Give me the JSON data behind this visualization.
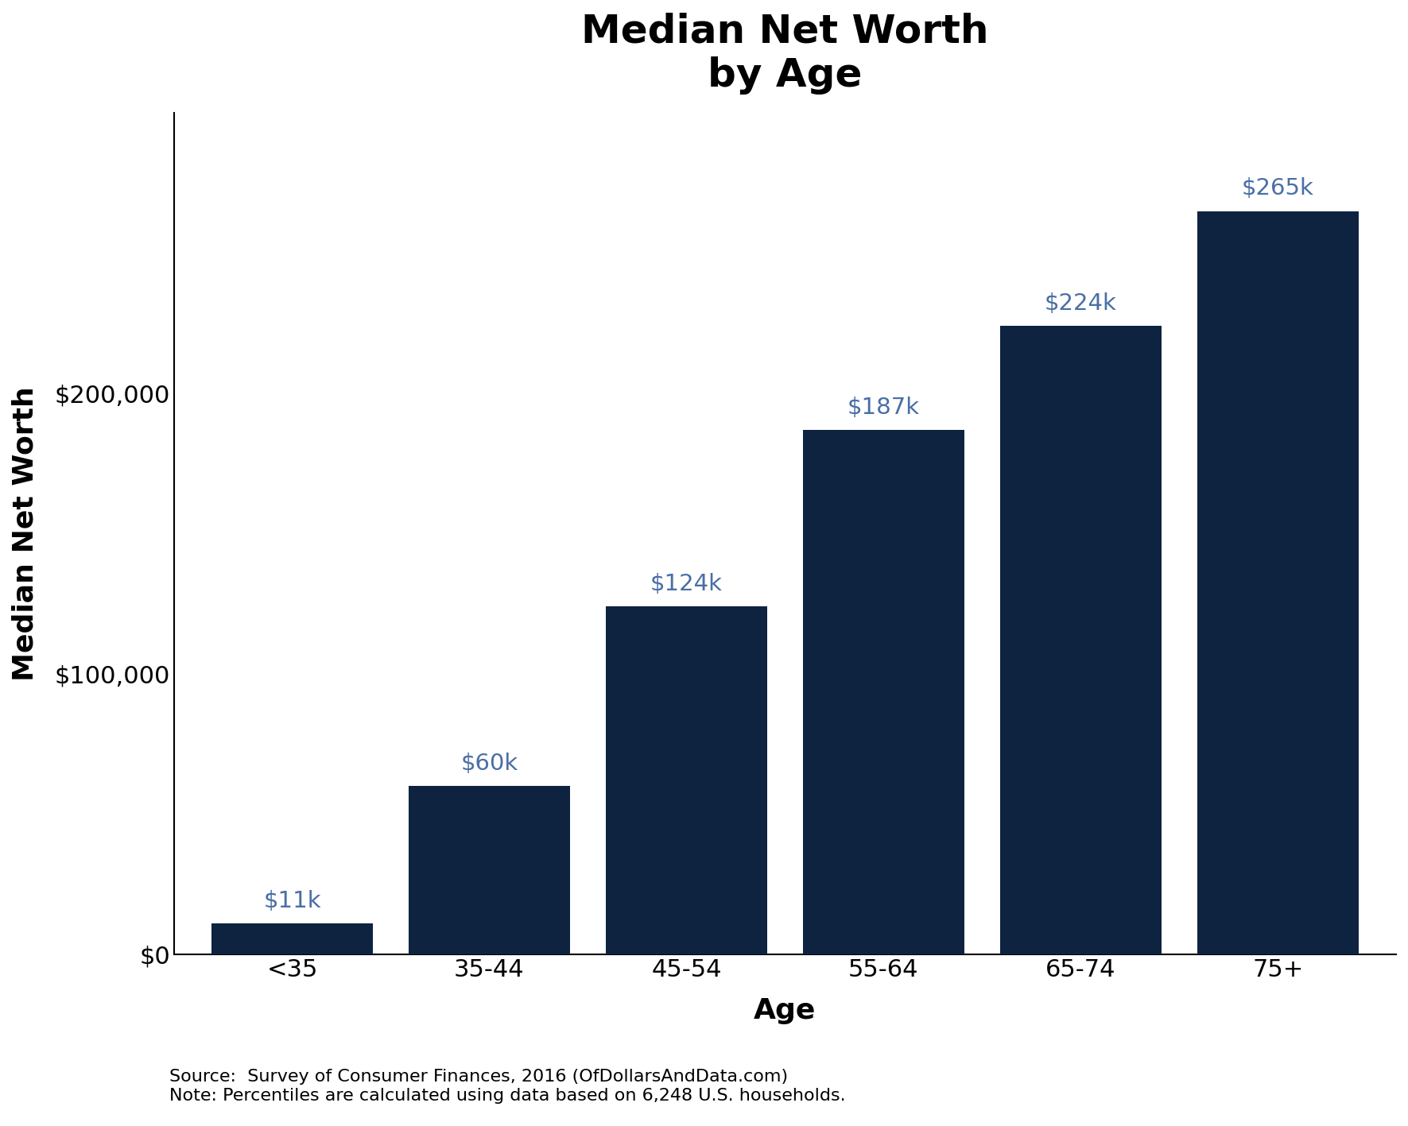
{
  "categories": [
    "<35",
    "35-44",
    "45-54",
    "55-64",
    "65-74",
    "75+"
  ],
  "values": [
    11000,
    60000,
    124000,
    187000,
    224000,
    265000
  ],
  "labels": [
    "$11k",
    "$60k",
    "$124k",
    "$187k",
    "$224k",
    "$265k"
  ],
  "bar_color": "#0e2340",
  "title_line1": "Median Net Worth",
  "title_line2": "by Age",
  "xlabel": "Age",
  "ylabel": "Median Net Worth",
  "ylim": [
    0,
    300000
  ],
  "yticks": [
    0,
    100000,
    200000
  ],
  "ytick_labels": [
    "$0",
    "$100,000",
    "$200,000"
  ],
  "source_text": "Source:  Survey of Consumer Finances, 2016 (OfDollarsAndData.com)\nNote: Percentiles are calculated using data based on 6,248 U.S. households.",
  "title_fontsize": 36,
  "axis_label_fontsize": 26,
  "tick_fontsize": 22,
  "bar_label_fontsize": 21,
  "source_fontsize": 16,
  "background_color": "#ffffff",
  "label_color": "#4a6fa5"
}
